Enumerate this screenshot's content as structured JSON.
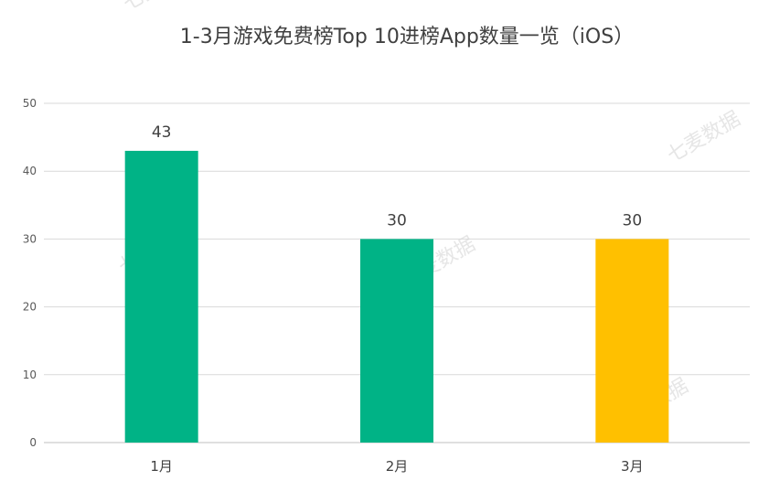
{
  "watermark": "七麦数据",
  "chart_data": {
    "type": "bar",
    "title": "1-3月游戏免费榜Top 10进榜App数量一览（iOS）",
    "xlabel": "",
    "ylabel": "",
    "categories": [
      "1月",
      "2月",
      "3月"
    ],
    "values": [
      43,
      30,
      30
    ],
    "data_labels": [
      "43",
      "30",
      "30"
    ],
    "bar_colors": [
      "#00b386",
      "#00b386",
      "#ffc000"
    ],
    "ylim": [
      0,
      50
    ],
    "yticks": [
      "0",
      "10",
      "20",
      "30",
      "40",
      "50"
    ],
    "grid": true,
    "legend": "none"
  }
}
